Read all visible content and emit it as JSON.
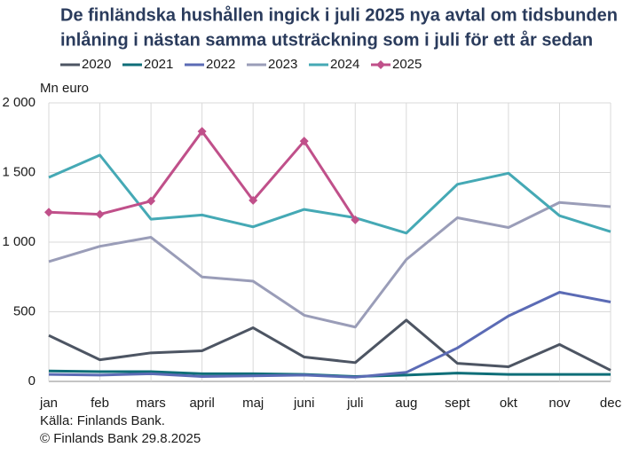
{
  "chart_data": {
    "type": "line",
    "title": [
      "De finländska hushållen ingick i juli 2025 nya avtal om tidsbunden",
      "inlåning i nästan samma utsträckning som i juli för ett år sedan"
    ],
    "ylabel": "Mn euro",
    "categories": [
      "jan",
      "feb",
      "mars",
      "april",
      "maj",
      "juni",
      "juli",
      "aug",
      "sept",
      "okt",
      "nov",
      "dec"
    ],
    "series": [
      {
        "name": "2020",
        "color": "#4d5563",
        "values": [
          330,
          155,
          205,
          220,
          385,
          175,
          135,
          440,
          130,
          105,
          265,
          80
        ]
      },
      {
        "name": "2021",
        "color": "#0e6e78",
        "values": [
          75,
          70,
          70,
          55,
          55,
          50,
          35,
          45,
          60,
          50,
          50,
          50
        ]
      },
      {
        "name": "2022",
        "color": "#5b6bb5",
        "values": [
          50,
          45,
          55,
          35,
          40,
          45,
          30,
          65,
          240,
          470,
          640,
          570
        ]
      },
      {
        "name": "2023",
        "color": "#9a9db8",
        "values": [
          860,
          970,
          1035,
          750,
          720,
          475,
          390,
          875,
          1175,
          1105,
          1285,
          1255
        ]
      },
      {
        "name": "2024",
        "color": "#45a9b5",
        "values": [
          1465,
          1625,
          1165,
          1195,
          1110,
          1235,
          1175,
          1065,
          1415,
          1495,
          1190,
          1075
        ]
      },
      {
        "name": "2025",
        "color": "#c0508a",
        "marker": "diamond",
        "values": [
          1215,
          1200,
          1295,
          1795,
          1300,
          1725,
          1160,
          null,
          null,
          null,
          null,
          null
        ]
      }
    ],
    "ylim": [
      0,
      2000
    ],
    "yticks": [
      0,
      500,
      {
        "value": 1000,
        "label": "1 000"
      },
      {
        "value": 1500,
        "label": "1 500"
      },
      {
        "value": 2000,
        "label": "2 000"
      }
    ],
    "grid": true,
    "legend": "top",
    "footer": [
      "Källa: Finlands Bank.",
      "© Finlands Bank 29.8.2025"
    ]
  }
}
